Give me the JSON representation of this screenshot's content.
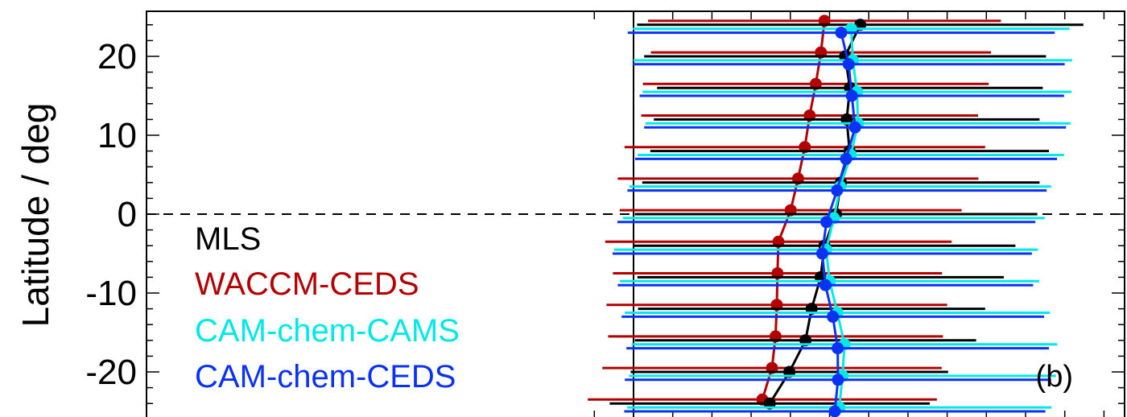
{
  "chart_data": {
    "type": "scatter",
    "title": "",
    "xlabel": "",
    "ylabel": "Latitude / deg",
    "ylim": [
      -25.5,
      25.5
    ],
    "xlim": [
      -1,
      1
    ],
    "yticks": [
      -20,
      -10,
      0,
      10,
      20
    ],
    "ytick_labels": [
      "-20",
      "-10",
      "0",
      "10",
      "20"
    ],
    "panel_label": "(b)",
    "zero_x": 0,
    "zero_y": 0,
    "grid": false,
    "legend_placement": "bottom-left",
    "series": [
      {
        "name": "MLS",
        "color": "#000000",
        "points": [
          {
            "lat": 24,
            "x": 0.704,
            "xerr": 0.693
          },
          {
            "lat": 20,
            "x": 0.657,
            "xerr": 0.624
          },
          {
            "lat": 16,
            "x": 0.672,
            "xerr": 0.599
          },
          {
            "lat": 12,
            "x": 0.662,
            "xerr": 0.599
          },
          {
            "lat": 8,
            "x": 0.671,
            "xerr": 0.619
          },
          {
            "lat": 4,
            "x": 0.644,
            "xerr": 0.617
          },
          {
            "lat": 0,
            "x": 0.629,
            "xerr": 0.625
          },
          {
            "lat": -4,
            "x": 0.593,
            "xerr": 0.593
          },
          {
            "lat": -8,
            "x": 0.581,
            "xerr": 0.569
          },
          {
            "lat": -12,
            "x": 0.553,
            "xerr": 0.539
          },
          {
            "lat": -16,
            "x": 0.534,
            "xerr": 0.53
          },
          {
            "lat": -20,
            "x": 0.484,
            "xerr": 0.493
          },
          {
            "lat": -24,
            "x": 0.423,
            "xerr": 0.497
          }
        ]
      },
      {
        "name": "WACCM-CEDS",
        "color": "#b40000",
        "points": [
          {
            "lat": 24.5,
            "x": 0.593,
            "xerr": 0.548
          },
          {
            "lat": 20.5,
            "x": 0.582,
            "xerr": 0.528
          },
          {
            "lat": 16.5,
            "x": 0.566,
            "xerr": 0.537
          },
          {
            "lat": 12.5,
            "x": 0.547,
            "xerr": 0.523
          },
          {
            "lat": 8.5,
            "x": 0.532,
            "xerr": 0.56
          },
          {
            "lat": 4.5,
            "x": 0.511,
            "xerr": 0.56
          },
          {
            "lat": 0.5,
            "x": 0.488,
            "xerr": 0.531
          },
          {
            "lat": -3.5,
            "x": 0.45,
            "xerr": 0.538
          },
          {
            "lat": -7.5,
            "x": 0.447,
            "xerr": 0.511
          },
          {
            "lat": -11.5,
            "x": 0.445,
            "xerr": 0.529
          },
          {
            "lat": -15.5,
            "x": 0.441,
            "xerr": 0.52
          },
          {
            "lat": -19.5,
            "x": 0.43,
            "xerr": 0.527
          },
          {
            "lat": -23.5,
            "x": 0.4,
            "xerr": 0.542
          }
        ]
      },
      {
        "name": "CAM-chem-CAMS",
        "color": "#00e8e8",
        "points": [
          {
            "lat": 23.5,
            "x": 0.676,
            "xerr": 0.678
          },
          {
            "lat": 19.5,
            "x": 0.681,
            "xerr": 0.681
          },
          {
            "lat": 15.5,
            "x": 0.694,
            "xerr": 0.666
          },
          {
            "lat": 11.5,
            "x": 0.697,
            "xerr": 0.66
          },
          {
            "lat": 7.5,
            "x": 0.675,
            "xerr": 0.662
          },
          {
            "lat": 3.5,
            "x": 0.642,
            "xerr": 0.655
          },
          {
            "lat": -0.5,
            "x": 0.622,
            "xerr": 0.655
          },
          {
            "lat": -4.5,
            "x": 0.598,
            "xerr": 0.658
          },
          {
            "lat": -8.5,
            "x": 0.609,
            "xerr": 0.651
          },
          {
            "lat": -12.5,
            "x": 0.633,
            "xerr": 0.66
          },
          {
            "lat": -16.5,
            "x": 0.655,
            "xerr": 0.661
          },
          {
            "lat": -20.5,
            "x": 0.649,
            "xerr": 0.663
          },
          {
            "lat": -24.5,
            "x": 0.639,
            "xerr": 0.659
          }
        ]
      },
      {
        "name": "CAM-chem-CEDS",
        "color": "#0a32f5",
        "points": [
          {
            "lat": 23,
            "x": 0.645,
            "xerr": 0.663
          },
          {
            "lat": 19,
            "x": 0.668,
            "xerr": 0.671
          },
          {
            "lat": 15,
            "x": 0.678,
            "xerr": 0.659
          },
          {
            "lat": 11,
            "x": 0.688,
            "xerr": 0.655
          },
          {
            "lat": 7,
            "x": 0.66,
            "xerr": 0.655
          },
          {
            "lat": 3,
            "x": 0.632,
            "xerr": 0.651
          },
          {
            "lat": -1,
            "x": 0.599,
            "xerr": 0.649
          },
          {
            "lat": -5,
            "x": 0.586,
            "xerr": 0.651
          },
          {
            "lat": -9,
            "x": 0.596,
            "xerr": 0.645
          },
          {
            "lat": -13,
            "x": 0.619,
            "xerr": 0.656
          },
          {
            "lat": -17,
            "x": 0.634,
            "xerr": 0.656
          },
          {
            "lat": -21,
            "x": 0.635,
            "xerr": 0.662
          },
          {
            "lat": -25,
            "x": 0.625,
            "xerr": 0.654
          }
        ]
      }
    ]
  }
}
